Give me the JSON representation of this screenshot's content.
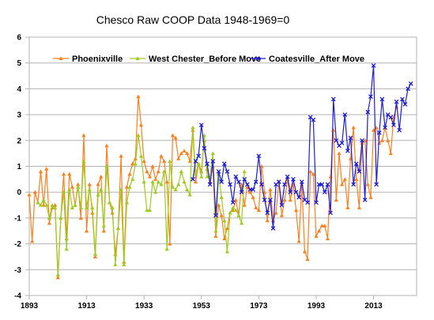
{
  "chart_data": {
    "type": "line",
    "title": "Chesco Raw COOP Data 1948-1969=0",
    "xlabel": "",
    "ylabel": "",
    "xlim": [
      1893,
      2028
    ],
    "ylim": [
      -4,
      6
    ],
    "x_ticks": [
      1893,
      1913,
      1933,
      1953,
      1973,
      1993,
      2013
    ],
    "y_ticks": [
      -4,
      -3,
      -2,
      -1,
      0,
      1,
      2,
      3,
      4,
      5,
      6
    ],
    "grid": true,
    "legend": "top-center",
    "series": [
      {
        "name": "Phoenixville",
        "color": "#ff7f1e",
        "marker": "triangle",
        "points": [
          [
            1893,
            -0.1
          ],
          [
            1894,
            -1.9
          ],
          [
            1895,
            0.0
          ],
          [
            1896,
            -0.4
          ],
          [
            1897,
            0.8
          ],
          [
            1898,
            -0.5
          ],
          [
            1899,
            0.9
          ],
          [
            1900,
            -1.2
          ],
          [
            1901,
            -0.6
          ],
          [
            1902,
            -0.5
          ],
          [
            1903,
            -3.3
          ],
          [
            1904,
            -1.0
          ],
          [
            1905,
            0.7
          ],
          [
            1906,
            -1.8
          ],
          [
            1907,
            0.7
          ],
          [
            1908,
            0.2
          ],
          [
            1909,
            -0.5
          ],
          [
            1910,
            0.3
          ],
          [
            1911,
            -1.0
          ],
          [
            1912,
            2.2
          ],
          [
            1913,
            -1.5
          ],
          [
            1914,
            0.3
          ],
          [
            1915,
            -0.8
          ],
          [
            1916,
            -2.5
          ],
          [
            1917,
            0.3
          ],
          [
            1918,
            0.6
          ],
          [
            1919,
            -1.5
          ],
          [
            1920,
            1.8
          ],
          [
            1921,
            -0.4
          ],
          [
            1922,
            -0.8
          ],
          [
            1923,
            -2.4
          ],
          [
            1924,
            -1.4
          ],
          [
            1925,
            1.4
          ],
          [
            1926,
            -2.7
          ],
          [
            1927,
            0.2
          ],
          [
            1928,
            0.7
          ],
          [
            1929,
            1.1
          ],
          [
            1930,
            1.3
          ],
          [
            1931,
            3.7
          ],
          [
            1932,
            2.6
          ],
          [
            1933,
            1.2
          ],
          [
            1934,
            0.8
          ],
          [
            1935,
            0.6
          ],
          [
            1936,
            1.0
          ],
          [
            1937,
            0.5
          ],
          [
            1938,
            0.8
          ],
          [
            1939,
            1.4
          ],
          [
            1940,
            1.2
          ],
          [
            1941,
            0.4
          ],
          [
            1942,
            -2.0
          ],
          [
            1943,
            2.2
          ],
          [
            1944,
            2.1
          ],
          [
            1945,
            1.3
          ],
          [
            1946,
            1.5
          ],
          [
            1947,
            1.6
          ],
          [
            1948,
            1.5
          ],
          [
            1949,
            1.2
          ],
          [
            1950,
            2.4
          ],
          [
            1951,
            0.4
          ],
          [
            1952,
            1.1
          ],
          [
            1953,
            0.8
          ],
          [
            1954,
            2.0
          ],
          [
            1955,
            0.9
          ],
          [
            1956,
            0.4
          ],
          [
            1957,
            1.0
          ],
          [
            1958,
            -1.7
          ],
          [
            1959,
            -0.5
          ],
          [
            1960,
            -0.9
          ],
          [
            1961,
            -1.8
          ],
          [
            1962,
            -1.4
          ],
          [
            1963,
            -0.8
          ],
          [
            1964,
            -0.7
          ],
          [
            1965,
            -0.3
          ],
          [
            1966,
            -0.9
          ],
          [
            1967,
            0.3
          ],
          [
            1968,
            -0.5
          ],
          [
            1969,
            0.2
          ],
          [
            1970,
            0.0
          ],
          [
            1971,
            -0.2
          ],
          [
            1972,
            -0.6
          ],
          [
            1973,
            -0.7
          ],
          [
            1974,
            1.0
          ],
          [
            1975,
            0.0
          ],
          [
            1976,
            -1.1
          ],
          [
            1977,
            0.1
          ],
          [
            1978,
            -1.1
          ],
          [
            1979,
            -0.8
          ],
          [
            1980,
            0.4
          ],
          [
            1981,
            -0.9
          ],
          [
            1982,
            -0.3
          ],
          [
            1983,
            0.5
          ],
          [
            1984,
            -0.3
          ],
          [
            1985,
            0.3
          ],
          [
            1986,
            -0.7
          ],
          [
            1987,
            -1.9
          ],
          [
            1988,
            0.3
          ],
          [
            1989,
            -2.3
          ],
          [
            1990,
            -2.6
          ],
          [
            1991,
            0.8
          ],
          [
            1992,
            0.7
          ],
          [
            1993,
            -1.7
          ],
          [
            1994,
            -1.5
          ],
          [
            1995,
            -1.3
          ],
          [
            1996,
            -1.3
          ],
          [
            1997,
            -1.8
          ],
          [
            1998,
            0.6
          ],
          [
            1999,
            2.4
          ],
          [
            2000,
            -0.3
          ],
          [
            2001,
            1.5
          ],
          [
            2002,
            0.3
          ],
          [
            2003,
            0.5
          ],
          [
            2004,
            -0.6
          ],
          [
            2005,
            1.3
          ],
          [
            2006,
            2.5
          ],
          [
            2007,
            0.5
          ],
          [
            2008,
            -0.6
          ],
          [
            2009,
            1.9
          ],
          [
            2010,
            2.0
          ],
          [
            2011,
            0.3
          ],
          [
            2012,
            -0.2
          ],
          [
            2013,
            2.4
          ],
          [
            2014,
            2.5
          ],
          [
            2015,
            1.9
          ],
          [
            2016,
            2.0
          ],
          [
            2017,
            2.5
          ],
          [
            2018,
            2.0
          ],
          [
            2019,
            1.5
          ],
          [
            2020,
            2.9
          ],
          [
            2021,
            3.3
          ]
        ]
      },
      {
        "name": "West Chester_Before Move",
        "color": "#9acd1e",
        "marker": "triangle",
        "points": [
          [
            1896,
            -0.4
          ],
          [
            1897,
            -0.5
          ],
          [
            1898,
            -0.3
          ],
          [
            1899,
            -0.5
          ],
          [
            1900,
            -1.0
          ],
          [
            1901,
            -0.5
          ],
          [
            1902,
            -0.6
          ],
          [
            1903,
            -3.2
          ],
          [
            1904,
            -1.0
          ],
          [
            1905,
            0.0
          ],
          [
            1906,
            -2.2
          ],
          [
            1907,
            0.1
          ],
          [
            1908,
            -0.6
          ],
          [
            1909,
            -0.5
          ],
          [
            1910,
            0.2
          ],
          [
            1911,
            -0.6
          ],
          [
            1912,
            1.2
          ],
          [
            1913,
            -0.6
          ],
          [
            1914,
            0.1
          ],
          [
            1915,
            -0.6
          ],
          [
            1916,
            -2.4
          ],
          [
            1917,
            -0.1
          ],
          [
            1918,
            0.1
          ],
          [
            1919,
            -1.3
          ],
          [
            1920,
            1.0
          ],
          [
            1921,
            -0.4
          ],
          [
            1922,
            -0.6
          ],
          [
            1923,
            -2.8
          ],
          [
            1924,
            -1.4
          ],
          [
            1925,
            0.1
          ],
          [
            1926,
            -2.8
          ],
          [
            1927,
            -0.4
          ],
          [
            1928,
            0.2
          ],
          [
            1929,
            0.5
          ],
          [
            1930,
            1.1
          ],
          [
            1931,
            2.2
          ],
          [
            1932,
            1.4
          ],
          [
            1933,
            0.4
          ],
          [
            1934,
            -0.7
          ],
          [
            1935,
            -0.7
          ],
          [
            1936,
            0.4
          ],
          [
            1937,
            0.0
          ],
          [
            1938,
            0.4
          ],
          [
            1939,
            0.3
          ],
          [
            1940,
            0.8
          ],
          [
            1941,
            -2.2
          ],
          [
            1942,
            1.2
          ],
          [
            1943,
            0.2
          ],
          [
            1944,
            0.1
          ],
          [
            1945,
            0.3
          ],
          [
            1946,
            0.8
          ],
          [
            1947,
            0.4
          ],
          [
            1948,
            0.1
          ],
          [
            1949,
            -0.1
          ],
          [
            1950,
            2.5
          ],
          [
            1951,
            0.7
          ],
          [
            1952,
            1.1
          ],
          [
            1953,
            0.6
          ],
          [
            1954,
            2.2
          ],
          [
            1955,
            0.6
          ],
          [
            1956,
            0.6
          ],
          [
            1957,
            1.5
          ],
          [
            1958,
            -1.5
          ],
          [
            1959,
            0.7
          ],
          [
            1960,
            -0.2
          ],
          [
            1961,
            -1.1
          ],
          [
            1962,
            -2.3
          ],
          [
            1963,
            -0.8
          ],
          [
            1964,
            -0.6
          ],
          [
            1965,
            -0.7
          ],
          [
            1966,
            -0.9
          ],
          [
            1967,
            -1.2
          ],
          [
            1968,
            0.8
          ]
        ]
      },
      {
        "name": "Coatesville_After Move",
        "color": "#1e1ed2",
        "marker": "x",
        "points": [
          [
            1950,
            0.5
          ],
          [
            1951,
            1.2
          ],
          [
            1952,
            1.4
          ],
          [
            1953,
            2.6
          ],
          [
            1954,
            1.7
          ],
          [
            1955,
            1.1
          ],
          [
            1956,
            0.3
          ],
          [
            1957,
            1.2
          ],
          [
            1958,
            -0.9
          ],
          [
            1959,
            0.8
          ],
          [
            1960,
            0.4
          ],
          [
            1961,
            1.1
          ],
          [
            1962,
            0.8
          ],
          [
            1963,
            0.3
          ],
          [
            1964,
            -0.4
          ],
          [
            1965,
            0.6
          ],
          [
            1966,
            0.4
          ],
          [
            1967,
            0.0
          ],
          [
            1968,
            0.5
          ],
          [
            1969,
            0.3
          ],
          [
            1970,
            0.1
          ],
          [
            1971,
            0.1
          ],
          [
            1972,
            0.4
          ],
          [
            1973,
            1.4
          ],
          [
            1974,
            0.3
          ],
          [
            1975,
            -0.3
          ],
          [
            1976,
            -0.8
          ],
          [
            1977,
            -0.3
          ],
          [
            1978,
            -1.4
          ],
          [
            1979,
            0.3
          ],
          [
            1980,
            0.4
          ],
          [
            1981,
            -0.5
          ],
          [
            1982,
            0.3
          ],
          [
            1983,
            0.6
          ],
          [
            1984,
            0.0
          ],
          [
            1985,
            0.5
          ],
          [
            1986,
            0.0
          ],
          [
            1987,
            -0.2
          ],
          [
            1988,
            0.4
          ],
          [
            1989,
            -0.3
          ],
          [
            1990,
            -0.4
          ],
          [
            1991,
            2.9
          ],
          [
            1992,
            2.8
          ],
          [
            1993,
            -0.4
          ],
          [
            1994,
            0.3
          ],
          [
            1995,
            0.3
          ],
          [
            1996,
            0.0
          ],
          [
            1997,
            0.3
          ],
          [
            1998,
            -0.8
          ],
          [
            1999,
            3.6
          ],
          [
            2000,
            2.0
          ],
          [
            2001,
            1.8
          ],
          [
            2002,
            1.9
          ],
          [
            2003,
            3.0
          ],
          [
            2004,
            1.6
          ],
          [
            2005,
            2.1
          ],
          [
            2006,
            0.3
          ],
          [
            2007,
            1.1
          ],
          [
            2008,
            0.8
          ],
          [
            2009,
            2.0
          ],
          [
            2010,
            -0.3
          ],
          [
            2011,
            3.1
          ],
          [
            2012,
            3.7
          ],
          [
            2013,
            4.9
          ],
          [
            2014,
            0.3
          ],
          [
            2015,
            2.3
          ],
          [
            2016,
            3.6
          ],
          [
            2017,
            2.5
          ],
          [
            2018,
            3.0
          ],
          [
            2019,
            2.9
          ],
          [
            2020,
            2.6
          ],
          [
            2021,
            3.5
          ],
          [
            2022,
            2.4
          ],
          [
            2023,
            3.6
          ],
          [
            2024,
            3.4
          ],
          [
            2025,
            4.0
          ],
          [
            2026,
            4.2
          ]
        ]
      }
    ]
  }
}
